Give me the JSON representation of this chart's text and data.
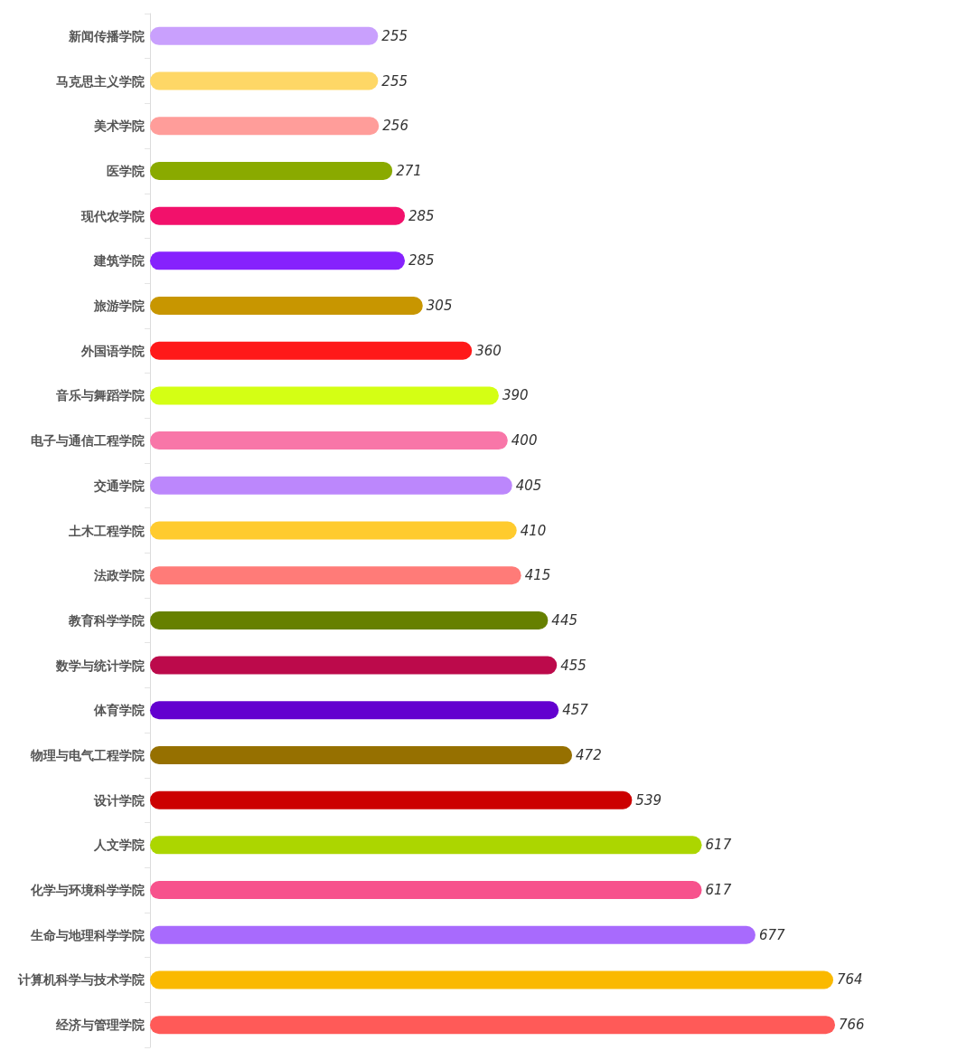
{
  "chart_data": {
    "type": "bar",
    "orientation": "horizontal",
    "data_labels": true,
    "categories": [
      "新闻传播学院",
      "马克思主义学院",
      "美术学院",
      "医学院",
      "现代农学院",
      "建筑学院",
      "旅游学院",
      "外国语学院",
      "音乐与舞蹈学院",
      "电子与通信工程学院",
      "交通学院",
      "土木工程学院",
      "法政学院",
      "教育科学学院",
      "数学与统计学院",
      "体育学院",
      "物理与电气工程学院",
      "设计学院",
      "人文学院",
      "化学与环境科学学院",
      "生命与地理科学学院",
      "计算机科学与技术学院",
      "经济与管理学院"
    ],
    "values": [
      255,
      255,
      256,
      271,
      285,
      285,
      305,
      360,
      390,
      400,
      405,
      410,
      415,
      445,
      455,
      457,
      472,
      539,
      617,
      617,
      677,
      764,
      766
    ],
    "colors": [
      "#c9a0fd",
      "#fed766",
      "#ff9d9a",
      "#8aaa00",
      "#f2116b",
      "#8622fd",
      "#c89600",
      "#ff1919",
      "#d4ff14",
      "#f876a8",
      "#bc87fc",
      "#ffcb2e",
      "#ff7b78",
      "#668000",
      "#bc0a4b",
      "#6300cf",
      "#967000",
      "#cc0000",
      "#acd600",
      "#f7528c",
      "#a86afd",
      "#fab900",
      "#ff5a58"
    ]
  }
}
